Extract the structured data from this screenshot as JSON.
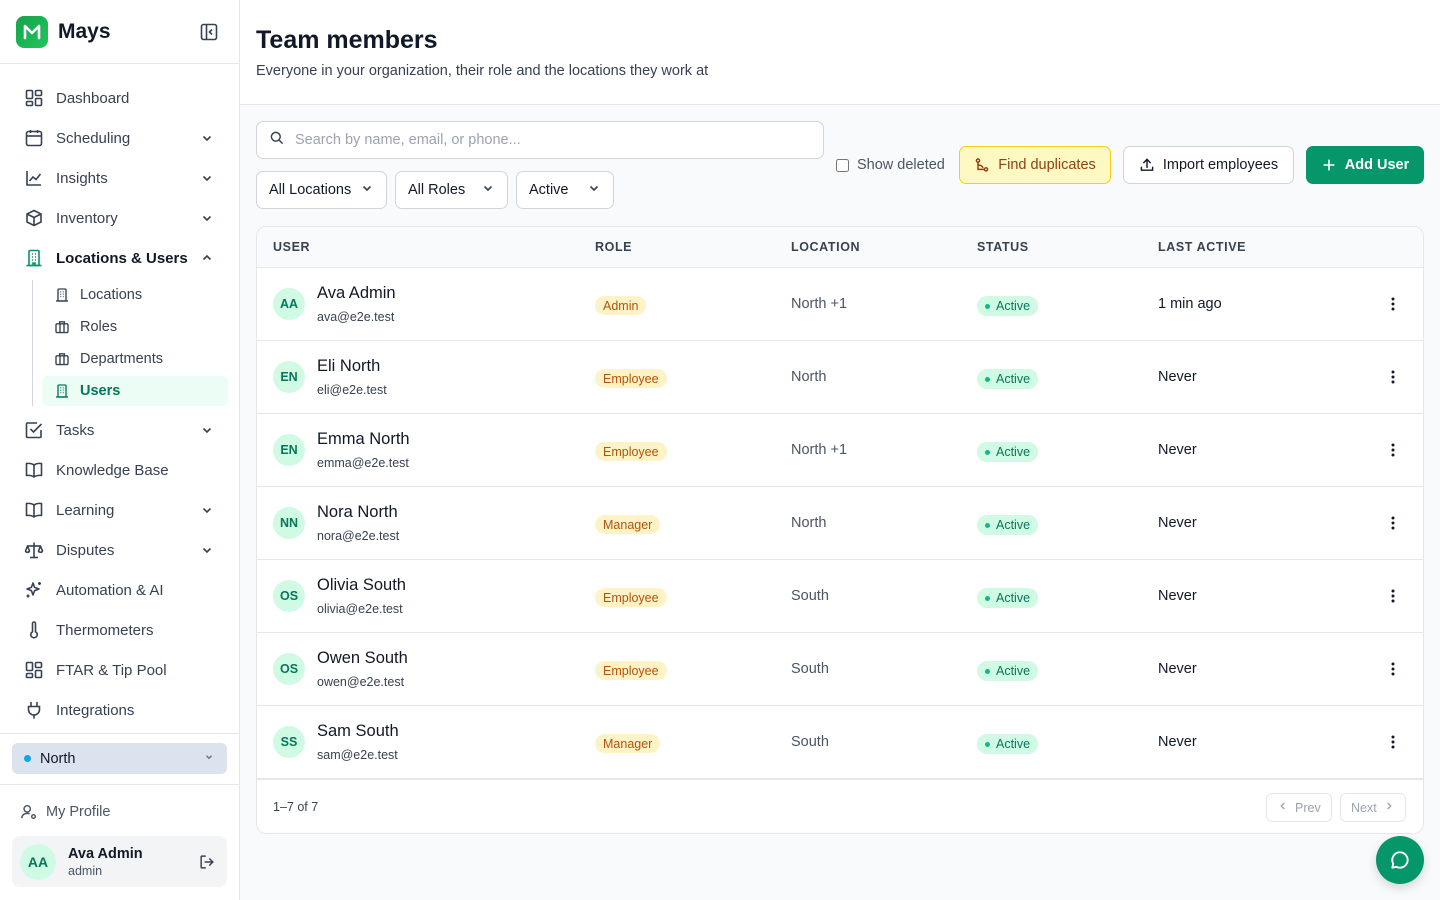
{
  "app": {
    "name": "Mays"
  },
  "sidebar": {
    "items": [
      {
        "label": "Dashboard",
        "icon": "dashboard-icon",
        "chevron": false
      },
      {
        "label": "Scheduling",
        "icon": "calendar-icon",
        "chevron": "down"
      },
      {
        "label": "Insights",
        "icon": "chart-line-icon",
        "chevron": "down"
      },
      {
        "label": "Inventory",
        "icon": "box-icon",
        "chevron": "down"
      },
      {
        "label": "Locations & Users",
        "icon": "building-icon",
        "chevron": "up"
      }
    ],
    "subitems": [
      {
        "label": "Locations",
        "icon": "building-icon",
        "active": false
      },
      {
        "label": "Roles",
        "icon": "briefcase-icon",
        "active": false
      },
      {
        "label": "Departments",
        "icon": "briefcase-icon",
        "active": false
      },
      {
        "label": "Users",
        "icon": "building-icon",
        "active": true
      }
    ],
    "items_after": [
      {
        "label": "Tasks",
        "icon": "checkbox-icon",
        "chevron": "down"
      },
      {
        "label": "Knowledge Base",
        "icon": "book-icon",
        "chevron": false
      },
      {
        "label": "Learning",
        "icon": "book-icon",
        "chevron": "down"
      },
      {
        "label": "Disputes",
        "icon": "scale-icon",
        "chevron": "down"
      },
      {
        "label": "Automation & AI",
        "icon": "sparkle-icon",
        "chevron": false
      },
      {
        "label": "Thermometers",
        "icon": "thermometer-icon",
        "chevron": false
      },
      {
        "label": "FTAR & Tip Pool",
        "icon": "grid-icon",
        "chevron": false
      },
      {
        "label": "Integrations",
        "icon": "plug-icon",
        "chevron": false
      }
    ],
    "location_switcher": "North",
    "profile_link": "My Profile",
    "user": {
      "initials": "AA",
      "name": "Ava Admin",
      "role": "admin"
    }
  },
  "header": {
    "title": "Team members",
    "subtitle": "Everyone in your organization, their role and the locations they work at"
  },
  "toolbar": {
    "search_placeholder": "Search by name, email, or phone...",
    "filters": [
      "All Locations",
      "All Roles",
      "Active"
    ],
    "show_deleted_label": "Show deleted",
    "find_duplicates_label": "Find duplicates",
    "import_label": "Import employees",
    "add_user_label": "Add User"
  },
  "table": {
    "columns": [
      "USER",
      "ROLE",
      "LOCATION",
      "STATUS",
      "LAST ACTIVE"
    ],
    "rows": [
      {
        "initials": "AA",
        "name": "Ava Admin",
        "email": "ava@e2e.test",
        "role": "Admin",
        "location": "North +1",
        "status": "Active",
        "last_active": "1 min ago"
      },
      {
        "initials": "EN",
        "name": "Eli North",
        "email": "eli@e2e.test",
        "role": "Employee",
        "location": "North",
        "status": "Active",
        "last_active": "Never"
      },
      {
        "initials": "EN",
        "name": "Emma North",
        "email": "emma@e2e.test",
        "role": "Employee",
        "location": "North +1",
        "status": "Active",
        "last_active": "Never"
      },
      {
        "initials": "NN",
        "name": "Nora North",
        "email": "nora@e2e.test",
        "role": "Manager",
        "location": "North",
        "status": "Active",
        "last_active": "Never"
      },
      {
        "initials": "OS",
        "name": "Olivia South",
        "email": "olivia@e2e.test",
        "role": "Employee",
        "location": "South",
        "status": "Active",
        "last_active": "Never"
      },
      {
        "initials": "OS",
        "name": "Owen South",
        "email": "owen@e2e.test",
        "role": "Employee",
        "location": "South",
        "status": "Active",
        "last_active": "Never"
      },
      {
        "initials": "SS",
        "name": "Sam South",
        "email": "sam@e2e.test",
        "role": "Manager",
        "location": "South",
        "status": "Active",
        "last_active": "Never"
      }
    ],
    "pagination": {
      "summary": "1–7 of 7",
      "prev": "Prev",
      "next": "Next"
    }
  },
  "colors": {
    "brand": "#059669",
    "accent_bg": "#ecfdf5",
    "role_badge": "#fef3c7",
    "status_badge": "#d1fae5"
  }
}
